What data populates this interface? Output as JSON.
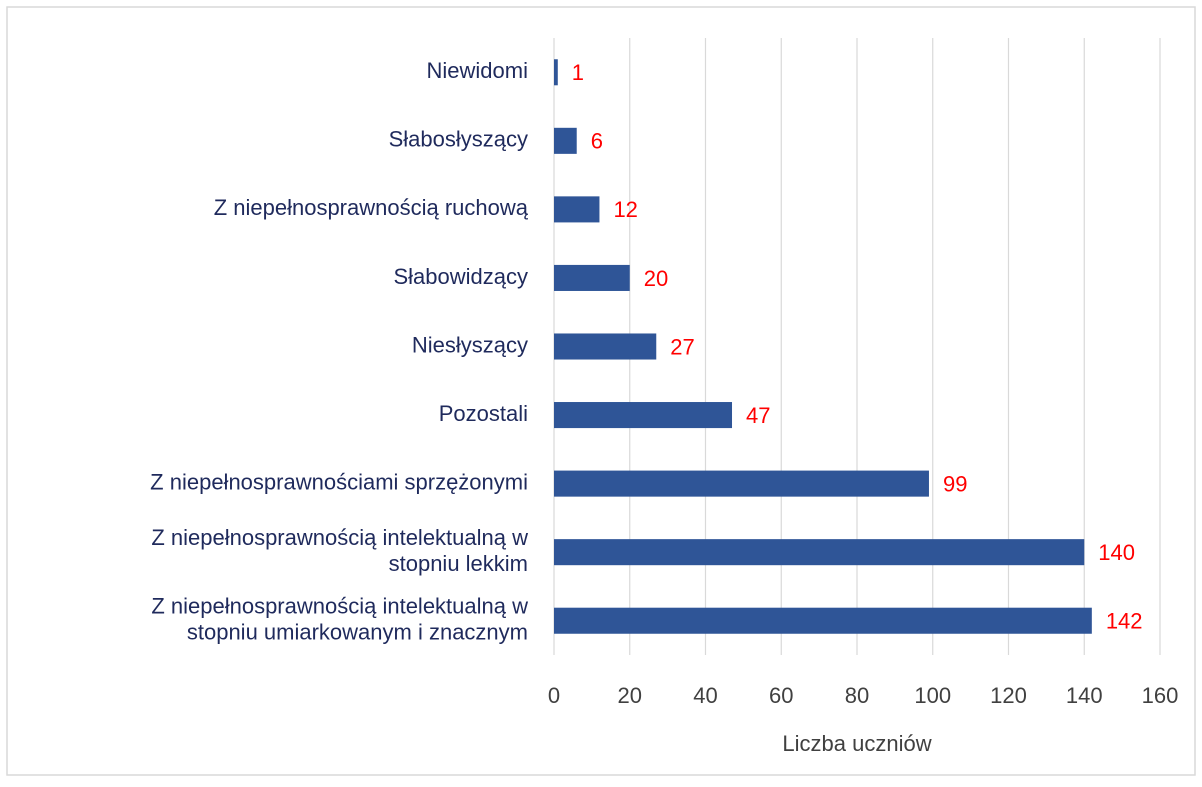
{
  "chart_data": {
    "type": "bar",
    "orientation": "horizontal",
    "x_label": "Liczba uczniów",
    "categories": [
      "Niewidomi",
      "Słabosłyszący",
      "Z niepełnosprawnością ruchową",
      "Słabowidzący",
      "Niesłyszący",
      "Pozostali",
      "Z niepełnosprawnościami sprzężonymi",
      "Z niepełnosprawnością intelektualną w\nstopniu lekkim",
      "Z niepełnosprawnością intelektualną w\nstopniu umiarkowanym i znacznym"
    ],
    "values": [
      1,
      6,
      12,
      20,
      27,
      47,
      99,
      140,
      142
    ],
    "color": "#2f5597",
    "value_label_color": "#ff0000",
    "xlim": [
      0,
      160
    ],
    "xticks": [
      0,
      20,
      40,
      60,
      80,
      100,
      120,
      140,
      160
    ],
    "grid": true
  }
}
